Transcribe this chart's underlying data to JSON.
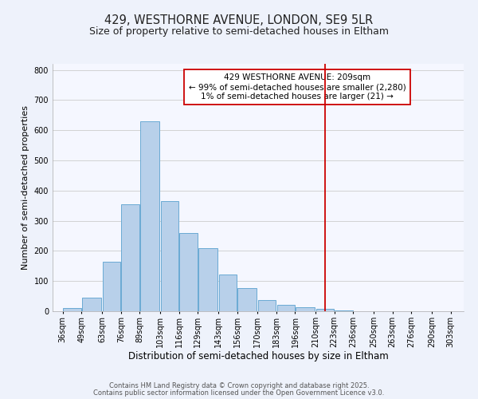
{
  "title": "429, WESTHORNE AVENUE, LONDON, SE9 5LR",
  "subtitle": "Size of property relative to semi-detached houses in Eltham",
  "xlabel": "Distribution of semi-detached houses by size in Eltham",
  "ylabel": "Number of semi-detached properties",
  "bar_left_edges": [
    36,
    49,
    63,
    76,
    89,
    103,
    116,
    129,
    143,
    156,
    170,
    183,
    196,
    210,
    223,
    236,
    250,
    263,
    276,
    290
  ],
  "bar_heights": [
    10,
    45,
    165,
    355,
    630,
    365,
    258,
    210,
    123,
    78,
    36,
    22,
    14,
    8,
    2,
    1,
    1,
    0,
    0,
    1
  ],
  "bar_widths": [
    13,
    14,
    13,
    13,
    14,
    13,
    13,
    14,
    13,
    14,
    13,
    13,
    14,
    13,
    13,
    14,
    13,
    13,
    14,
    13
  ],
  "bar_color": "#b8d0ea",
  "bar_edgecolor": "#6aaad4",
  "tick_labels": [
    "36sqm",
    "49sqm",
    "63sqm",
    "76sqm",
    "89sqm",
    "103sqm",
    "116sqm",
    "129sqm",
    "143sqm",
    "156sqm",
    "170sqm",
    "183sqm",
    "196sqm",
    "210sqm",
    "223sqm",
    "236sqm",
    "250sqm",
    "263sqm",
    "276sqm",
    "290sqm",
    "303sqm"
  ],
  "tick_positions": [
    36,
    49,
    63,
    76,
    89,
    103,
    116,
    129,
    143,
    156,
    170,
    183,
    196,
    210,
    223,
    236,
    250,
    263,
    276,
    290,
    303
  ],
  "ylim": [
    0,
    820
  ],
  "xlim": [
    29,
    312
  ],
  "vline_x": 216.5,
  "vline_color": "#cc0000",
  "annotation_title": "429 WESTHORNE AVENUE: 209sqm",
  "annotation_line1": "← 99% of semi-detached houses are smaller (2,280)",
  "annotation_line2": "1% of semi-detached houses are larger (21) →",
  "footer1": "Contains HM Land Registry data © Crown copyright and database right 2025.",
  "footer2": "Contains public sector information licensed under the Open Government Licence v3.0.",
  "background_color": "#eef2fb",
  "plot_background": "#f5f7ff",
  "grid_color": "#cccccc",
  "title_fontsize": 10.5,
  "subtitle_fontsize": 9,
  "xlabel_fontsize": 8.5,
  "ylabel_fontsize": 8,
  "tick_fontsize": 7,
  "footer_fontsize": 6,
  "annotation_fontsize": 7.5
}
